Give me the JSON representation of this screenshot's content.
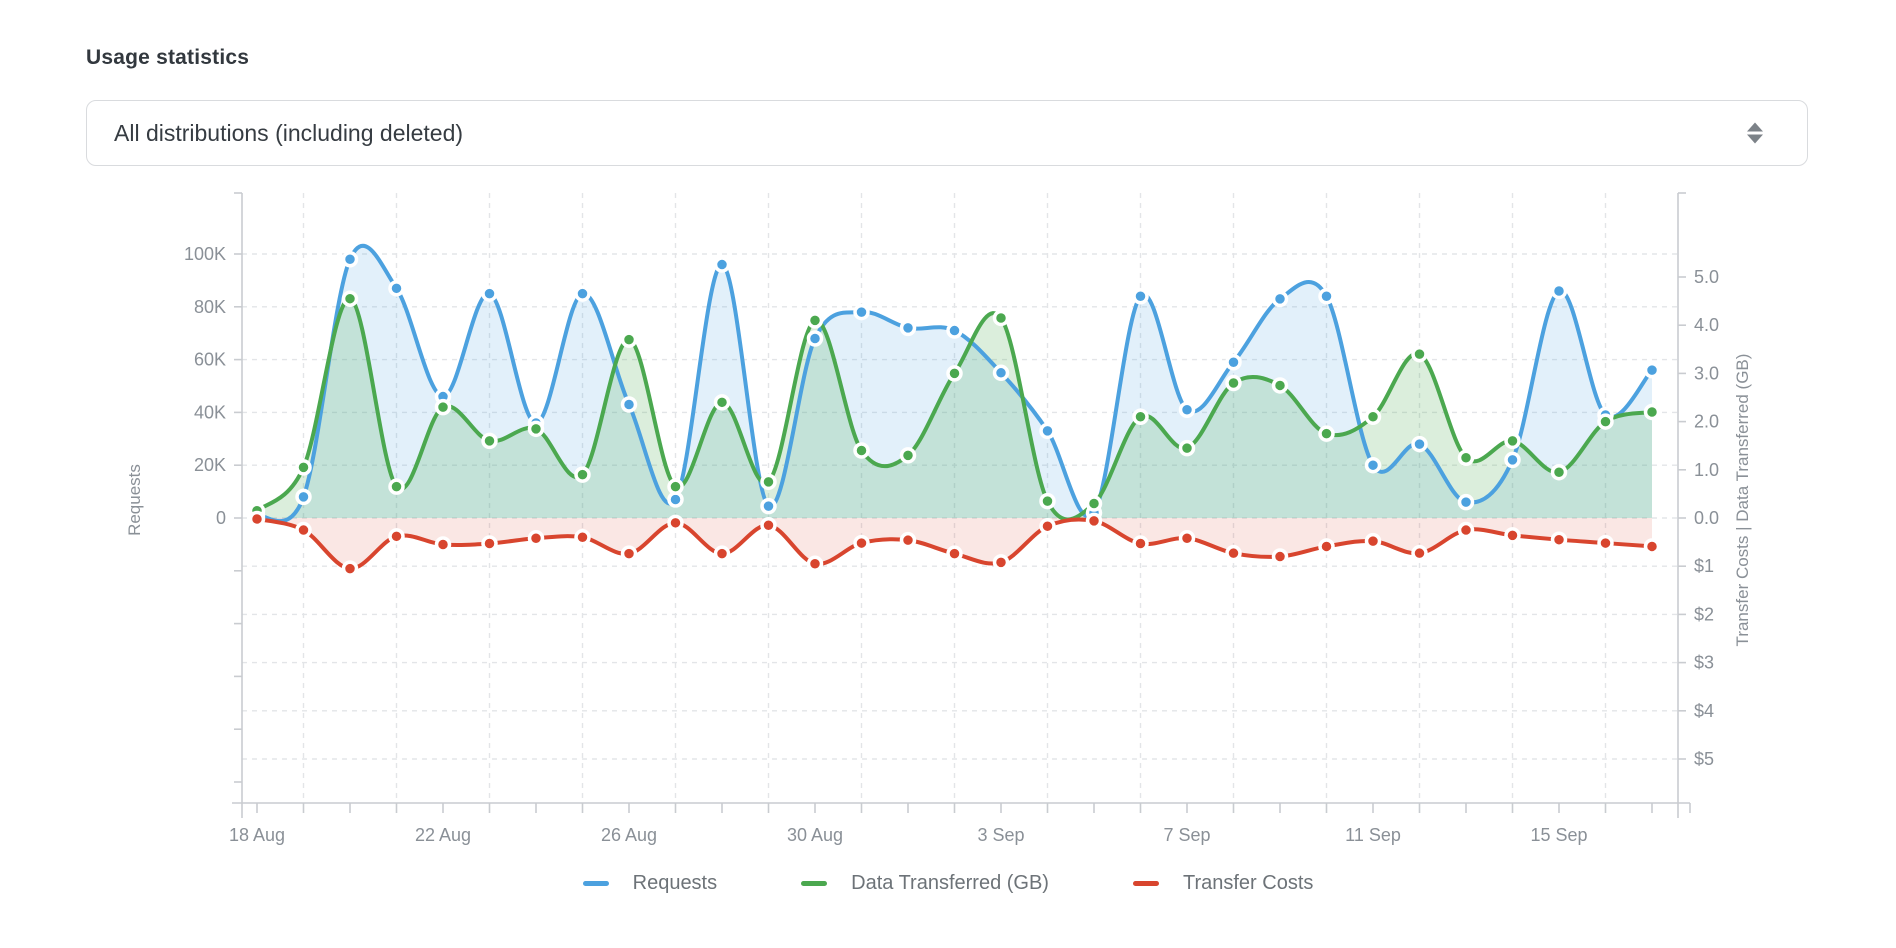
{
  "title": "Usage statistics",
  "select": {
    "value": "All distributions (including deleted)"
  },
  "colors": {
    "requests": "#4CA1DF",
    "data_transferred": "#4BA84F",
    "transfer_costs": "#D8452E",
    "requests_fill": "rgba(76,161,223,0.16)",
    "data_transferred_fill": "rgba(75,168,79,0.20)",
    "transfer_costs_fill": "rgba(216,69,46,0.13)",
    "grid": "#e3e5e8",
    "axis": "#c9ccd0",
    "tick_text": "#8a9097"
  },
  "legend": [
    {
      "label": "Requests",
      "color": "#4CA1DF"
    },
    {
      "label": "Data Transferred (GB)",
      "color": "#4BA84F"
    },
    {
      "label": "Transfer Costs",
      "color": "#D8452E"
    }
  ],
  "chart_data": {
    "type": "line",
    "x": [
      "18 Aug",
      "19 Aug",
      "20 Aug",
      "21 Aug",
      "22 Aug",
      "23 Aug",
      "24 Aug",
      "25 Aug",
      "26 Aug",
      "27 Aug",
      "28 Aug",
      "29 Aug",
      "30 Aug",
      "31 Aug",
      "1 Sep",
      "2 Sep",
      "3 Sep",
      "4 Sep",
      "5 Sep",
      "6 Sep",
      "7 Sep",
      "8 Sep",
      "9 Sep",
      "10 Sep",
      "11 Sep",
      "12 Sep",
      "13 Sep",
      "14 Sep",
      "15 Sep",
      "16 Sep",
      "17 Sep"
    ],
    "x_tick_labels": [
      "18 Aug",
      "22 Aug",
      "26 Aug",
      "30 Aug",
      "3 Sep",
      "7 Sep",
      "11 Sep",
      "15 Sep"
    ],
    "series": [
      {
        "name": "Requests",
        "axis": "left",
        "values": [
          1000,
          8000,
          98000,
          87000,
          46000,
          85000,
          36000,
          85000,
          43000,
          7000,
          96000,
          4500,
          68000,
          78000,
          72000,
          71000,
          55000,
          33000,
          2000,
          84000,
          41000,
          59000,
          83000,
          84000,
          20000,
          28000,
          6000,
          22000,
          86000,
          39000,
          56000
        ]
      },
      {
        "name": "Data Transferred (GB)",
        "axis": "right_gb",
        "values": [
          0.15,
          1.05,
          4.55,
          0.65,
          2.3,
          1.6,
          1.85,
          0.9,
          3.7,
          0.65,
          2.4,
          0.75,
          4.1,
          1.4,
          1.3,
          3.0,
          4.15,
          0.35,
          0.3,
          2.1,
          1.45,
          2.8,
          2.75,
          1.75,
          2.1,
          3.4,
          1.25,
          1.6,
          0.95,
          2.0,
          2.2
        ]
      },
      {
        "name": "Transfer Costs",
        "axis": "right_cost_down",
        "values": [
          0.02,
          0.25,
          1.05,
          0.38,
          0.55,
          0.53,
          0.42,
          0.4,
          0.74,
          0.1,
          0.74,
          0.15,
          0.95,
          0.52,
          0.46,
          0.74,
          0.92,
          0.17,
          0.06,
          0.53,
          0.42,
          0.73,
          0.8,
          0.59,
          0.48,
          0.73,
          0.25,
          0.36,
          0.45,
          0.52,
          0.59
        ]
      }
    ],
    "left_axis": {
      "label": "Requests",
      "tick_labels": [
        "0",
        "20K",
        "40K",
        "60K",
        "80K",
        "100K"
      ],
      "range": [
        0,
        100000
      ]
    },
    "right_axis": {
      "label": "Transfer Costs | Data Transferred (GB)",
      "gb_tick_labels": [
        "0.0",
        "1.0",
        "2.0",
        "3.0",
        "4.0",
        "5.0"
      ],
      "cost_tick_labels": [
        "$1",
        "$2",
        "$3",
        "$4",
        "$5"
      ],
      "gb_range": [
        0,
        5
      ],
      "cost_range_downward": [
        0,
        5
      ]
    },
    "grid": true,
    "legend_position": "bottom"
  }
}
